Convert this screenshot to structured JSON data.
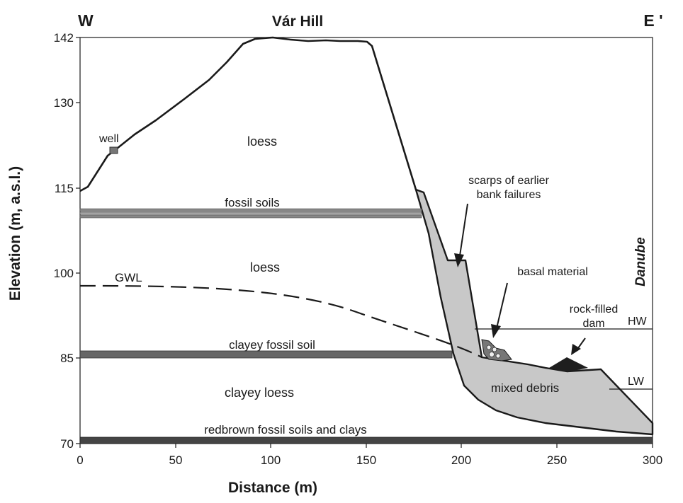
{
  "header": {
    "west_label": "W",
    "east_label": "E '",
    "hill_name": "Vár Hill"
  },
  "axes": {
    "ylabel": "Elevation (m, a.s.l.)",
    "xlabel": "Distance (m)",
    "y_ticks": [
      "142",
      "130",
      "115",
      "100",
      "85",
      "70"
    ],
    "x_ticks": [
      "0",
      "50",
      "100",
      "150",
      "200",
      "250",
      "300"
    ]
  },
  "labels": {
    "well": "well",
    "loess_upper": "loess",
    "fossil_soils": "fossil soils",
    "loess_lower": "loess",
    "gwl": "GWL",
    "clayey_fossil_soil": "clayey fossil soil",
    "clayey_loess": "clayey loess",
    "redbrown": "redbrown fossil soils and clays",
    "scarps_line1": "scarps of earlier",
    "scarps_line2": "bank failures",
    "basal_material": "basal material",
    "dam_line1": "rock-filled",
    "dam_line2": "dam",
    "hw": "HW",
    "lw": "LW",
    "mixed_debris": "mixed debris",
    "river": "Danube"
  },
  "colors": {
    "debris_fill": "#c8c8c8",
    "soil_band": "#666666",
    "dam_fill": "#1e1e1e",
    "outline": "#1a1a1a"
  }
}
